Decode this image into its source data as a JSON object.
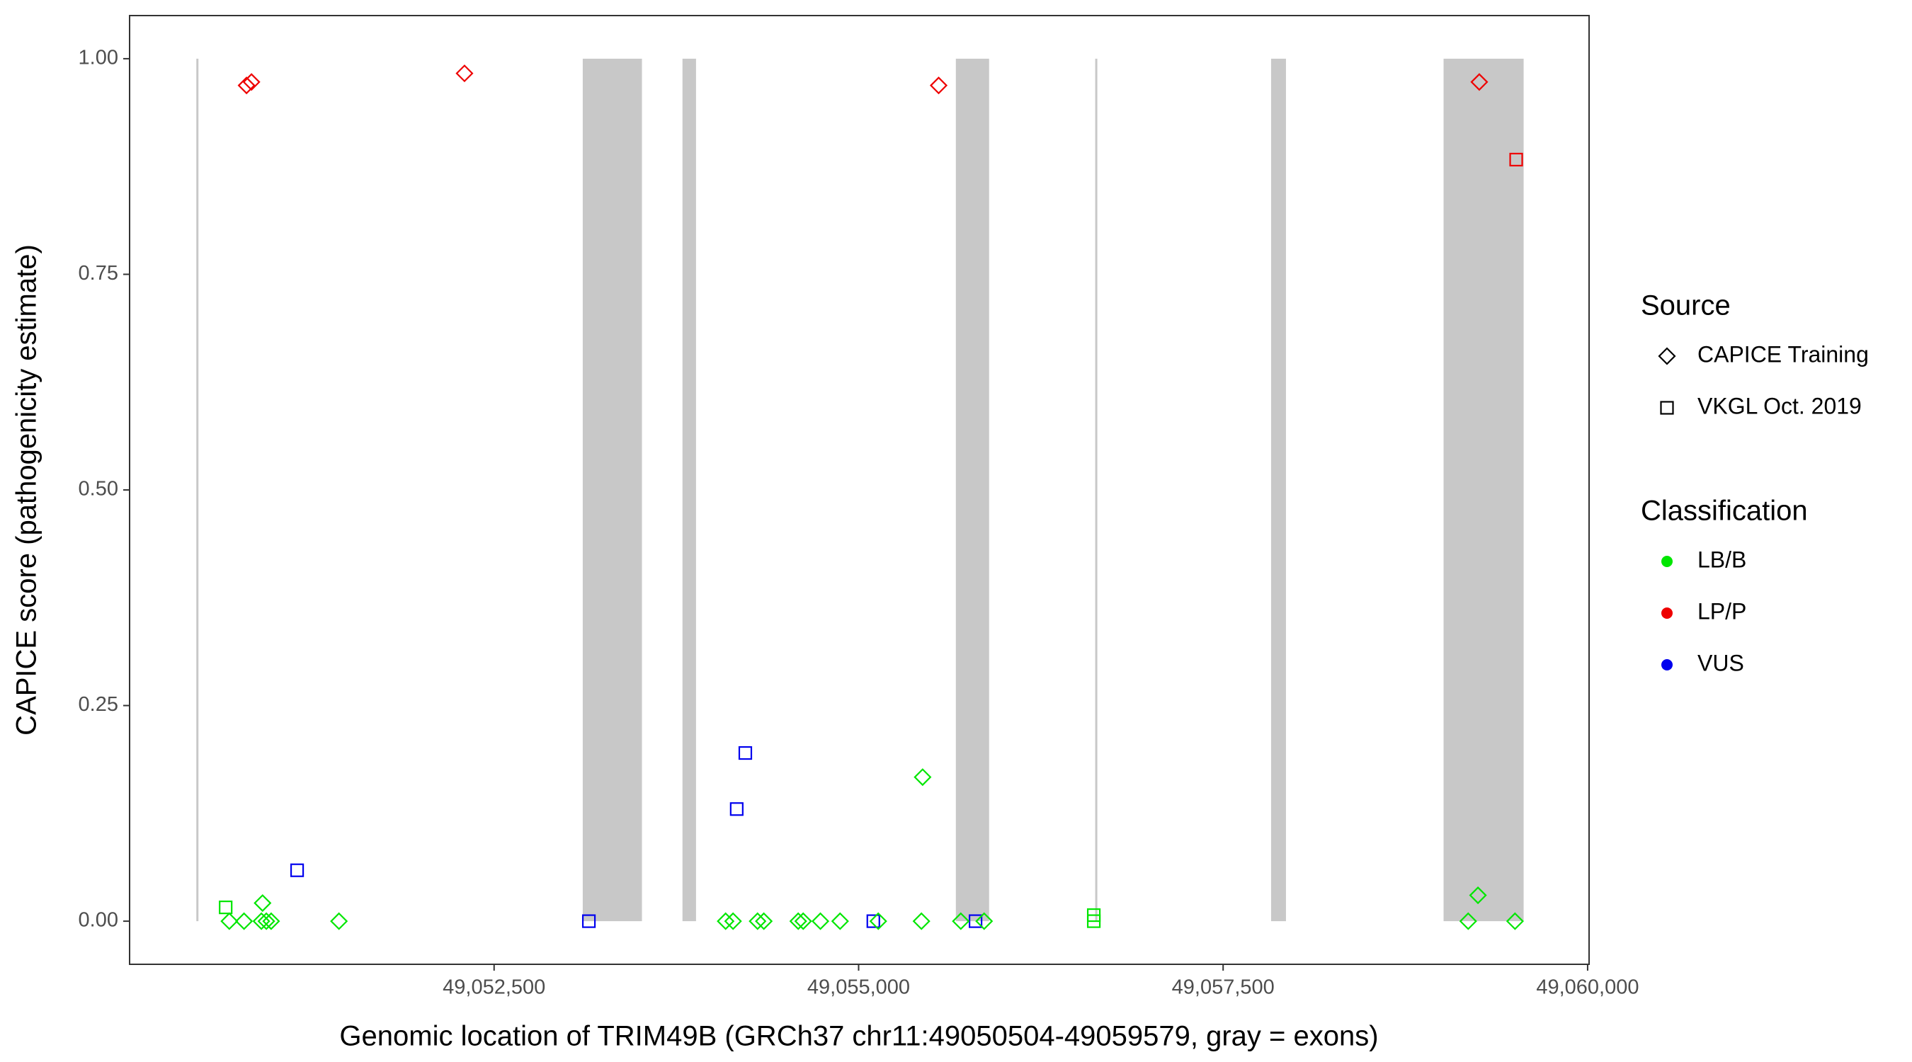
{
  "chart_data": {
    "type": "scatter",
    "y_label": "CAPICE score (pathogenicity estimate)",
    "x_label": "Genomic location of TRIM49B (GRCh37 chr11:49050504-49059579, gray = exons)",
    "xlim": [
      49050000,
      49060010
    ],
    "ylim": [
      -0.05,
      1.05
    ],
    "xticks": [
      {
        "value": 49052500,
        "label": "49,052,500"
      },
      {
        "value": 49055000,
        "label": "49,055,000"
      },
      {
        "value": 49057500,
        "label": "49,057,500"
      },
      {
        "value": 49060000,
        "label": "49,060,000"
      }
    ],
    "yticks": [
      {
        "value": 0,
        "label": "0.00"
      },
      {
        "value": 0.25,
        "label": "0.25"
      },
      {
        "value": 0.5,
        "label": "0.50"
      },
      {
        "value": 0.75,
        "label": "0.75"
      },
      {
        "value": 1,
        "label": "1.00"
      }
    ],
    "exon_color": "#c8c8c8",
    "exons": [
      [
        49050460,
        49050470
      ],
      [
        49053108,
        49053514
      ],
      [
        49053792,
        49053885
      ],
      [
        49055667,
        49055895
      ],
      [
        49056625,
        49056635
      ],
      [
        49057829,
        49057931
      ],
      [
        49059012,
        49059561
      ]
    ],
    "source_legend": {
      "title": "Source",
      "items": [
        {
          "label": "CAPICE Training",
          "shape": "diamond"
        },
        {
          "label": "VKGL Oct. 2019",
          "shape": "square"
        }
      ]
    },
    "classification_legend": {
      "title": "Classification",
      "items": [
        {
          "label": "LB/B",
          "color": "#00e600"
        },
        {
          "label": "LP/P",
          "color": "#ee0000"
        },
        {
          "label": "VUS",
          "color": "#0000ee"
        }
      ]
    },
    "series": [
      {
        "shape": "diamond",
        "color": "#ee0000",
        "x": [
          49050802,
          49050836,
          49052297,
          49055549,
          49059257
        ],
        "values": [
          0.969,
          0.973,
          0.983,
          0.969,
          0.973
        ]
      },
      {
        "shape": "square",
        "color": "#ee0000",
        "x": [
          49059510
        ],
        "values": [
          0.883
        ]
      },
      {
        "shape": "square",
        "color": "#0000ee",
        "x": [
          49051149,
          49053150,
          49054164,
          49054223,
          49055101,
          49055802
        ],
        "values": [
          0.059,
          0,
          0.13,
          0.195,
          0,
          0
        ]
      },
      {
        "shape": "square",
        "color": "#00e600",
        "x": [
          49050659,
          49056613,
          49056613
        ],
        "values": [
          0.016,
          0.007,
          0
        ]
      },
      {
        "shape": "diamond",
        "color": "#00e600",
        "x": [
          49050684,
          49050785,
          49050912,
          49050904,
          49050938,
          49050971,
          49051436,
          49054088,
          49054139,
          49054307,
          49054350,
          49054586,
          49054620,
          49054738,
          49054873,
          49055135,
          49055431,
          49055439,
          49055701,
          49055861,
          49059181,
          49059248,
          49059502
        ],
        "values": [
          0,
          0,
          0.021,
          0,
          0,
          0,
          0,
          0,
          0,
          0,
          0,
          0,
          0,
          0,
          0,
          0,
          0,
          0.167,
          0,
          0,
          0,
          0.03,
          0
        ]
      }
    ]
  }
}
